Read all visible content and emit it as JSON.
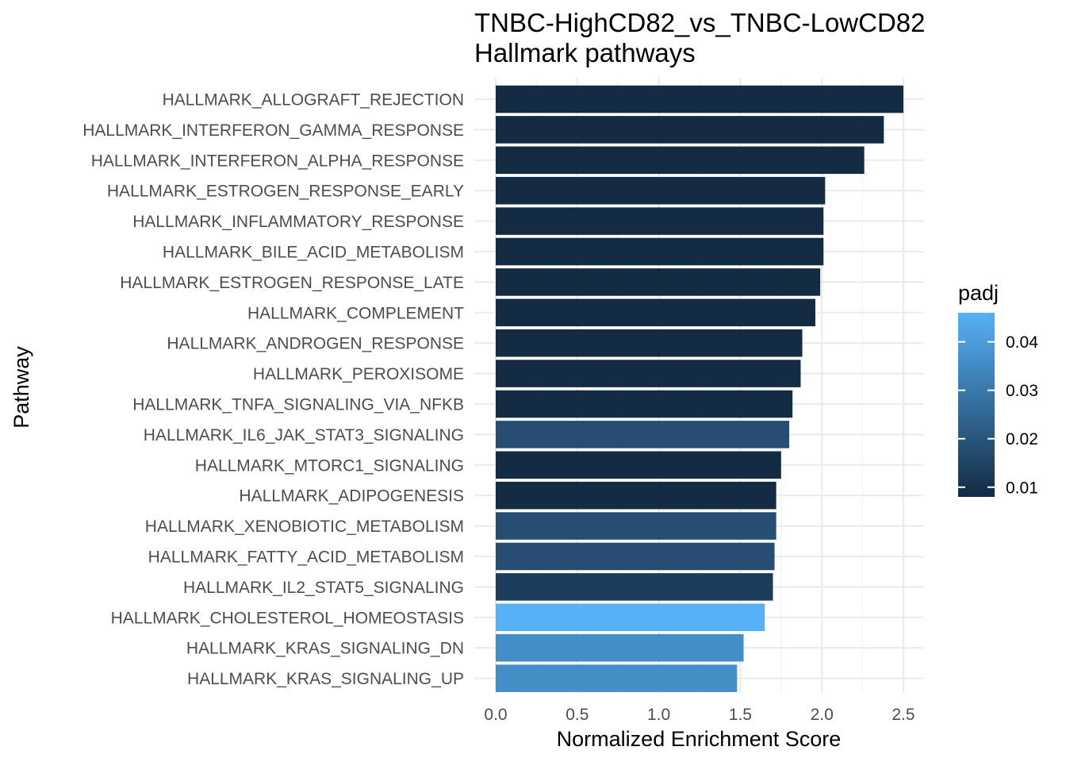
{
  "chart_data": {
    "type": "bar",
    "orientation": "horizontal",
    "title": "TNBC-HighCD82_vs_TNBC-LowCD82",
    "subtitle": "Hallmark pathways",
    "xlabel": "Normalized Enrichment Score",
    "ylabel": "Pathway",
    "xlim": [
      0,
      2.62
    ],
    "xticks": [
      0.0,
      0.5,
      1.0,
      1.5,
      2.0,
      2.5
    ],
    "xtick_labels": [
      "0.0",
      "0.5",
      "1.0",
      "1.5",
      "2.0",
      "2.5"
    ],
    "grid": true,
    "legend": {
      "title": "padj",
      "type": "colorbar",
      "placement": "right",
      "range": [
        0.008,
        0.046
      ],
      "ticks": [
        0.01,
        0.02,
        0.03,
        0.04
      ],
      "tick_labels": [
        "0.01",
        "0.02",
        "0.03",
        "0.04"
      ],
      "low_color": "#132B43",
      "high_color": "#56B1F7"
    },
    "categories": [
      "HALLMARK_ALLOGRAFT_REJECTION",
      "HALLMARK_INTERFERON_GAMMA_RESPONSE",
      "HALLMARK_INTERFERON_ALPHA_RESPONSE",
      "HALLMARK_ESTROGEN_RESPONSE_EARLY",
      "HALLMARK_INFLAMMATORY_RESPONSE",
      "HALLMARK_BILE_ACID_METABOLISM",
      "HALLMARK_ESTROGEN_RESPONSE_LATE",
      "HALLMARK_COMPLEMENT",
      "HALLMARK_ANDROGEN_RESPONSE",
      "HALLMARK_PEROXISOME",
      "HALLMARK_TNFA_SIGNALING_VIA_NFKB",
      "HALLMARK_IL6_JAK_STAT3_SIGNALING",
      "HALLMARK_MTORC1_SIGNALING",
      "HALLMARK_ADIPOGENESIS",
      "HALLMARK_XENOBIOTIC_METABOLISM",
      "HALLMARK_FATTY_ACID_METABOLISM",
      "HALLMARK_IL2_STAT5_SIGNALING",
      "HALLMARK_CHOLESTEROL_HOMEOSTASIS",
      "HALLMARK_KRAS_SIGNALING_DN",
      "HALLMARK_KRAS_SIGNALING_UP"
    ],
    "values": [
      2.5,
      2.38,
      2.26,
      2.02,
      2.01,
      2.01,
      1.99,
      1.96,
      1.88,
      1.87,
      1.82,
      1.8,
      1.75,
      1.72,
      1.72,
      1.71,
      1.7,
      1.65,
      1.52,
      1.48
    ],
    "padj": [
      0.008,
      0.008,
      0.008,
      0.008,
      0.008,
      0.008,
      0.008,
      0.008,
      0.008,
      0.008,
      0.008,
      0.018,
      0.008,
      0.008,
      0.018,
      0.018,
      0.013,
      0.046,
      0.036,
      0.036
    ]
  }
}
